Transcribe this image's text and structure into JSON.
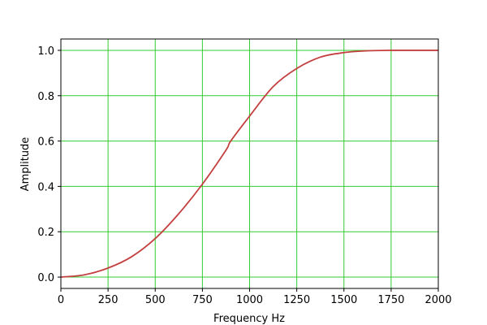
{
  "chart_data": {
    "type": "line",
    "title": "",
    "xlabel": "Frequency Hz",
    "ylabel": "Amplitude",
    "xlim": [
      0,
      2000
    ],
    "ylim": [
      -0.05,
      1.05
    ],
    "xticks": [
      0,
      250,
      500,
      750,
      1000,
      1250,
      1500,
      1750,
      2000
    ],
    "yticks": [
      0.0,
      0.2,
      0.4,
      0.6,
      0.8,
      1.0
    ],
    "ytick_labels": [
      "0.0",
      "0.2",
      "0.4",
      "0.6",
      "0.8",
      "1.0"
    ],
    "grid": true,
    "grid_color": "#33cc33",
    "line_color": "#c44040",
    "x": [
      0,
      125,
      250,
      375,
      500,
      625,
      750,
      875,
      900,
      1000,
      1125,
      1250,
      1375,
      1500,
      1625,
      1750,
      1875,
      2000
    ],
    "y": [
      0,
      0.01,
      0.04,
      0.09,
      0.17,
      0.28,
      0.41,
      0.56,
      0.6,
      0.71,
      0.84,
      0.92,
      0.97,
      0.99,
      0.998,
      1.0,
      1.0,
      1.0
    ]
  }
}
